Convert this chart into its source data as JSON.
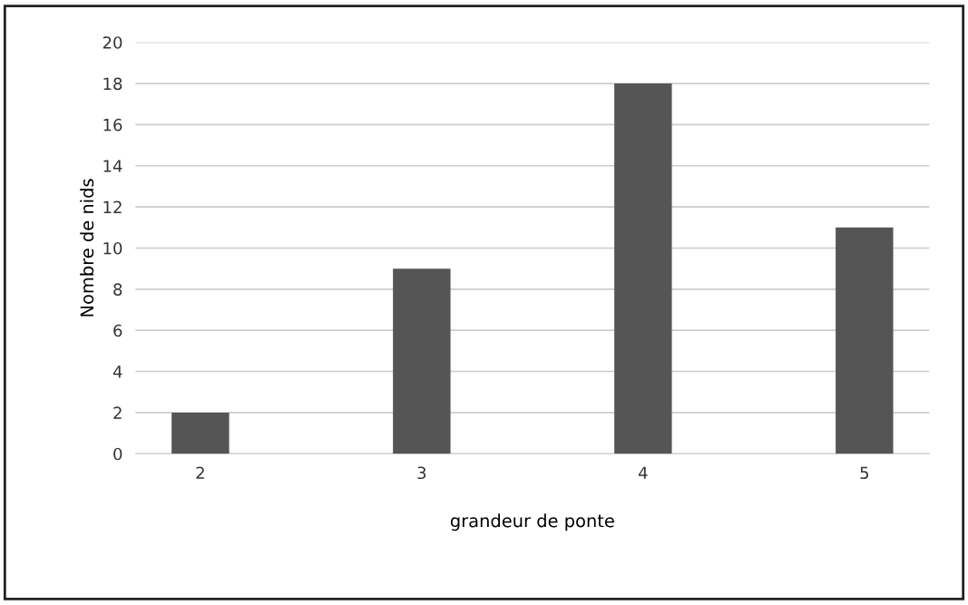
{
  "chart_data": {
    "type": "bar",
    "xlabel": "grandeur de ponte",
    "ylabel": "Nombre de nids",
    "categories": [
      "2",
      "3",
      "4",
      "5"
    ],
    "values": [
      2,
      9,
      18,
      11
    ],
    "color": "#555555",
    "ylim": [
      0,
      20
    ],
    "yticks": [
      0,
      2,
      4,
      6,
      8,
      10,
      12,
      14,
      16,
      18,
      20
    ],
    "grid": "y"
  }
}
